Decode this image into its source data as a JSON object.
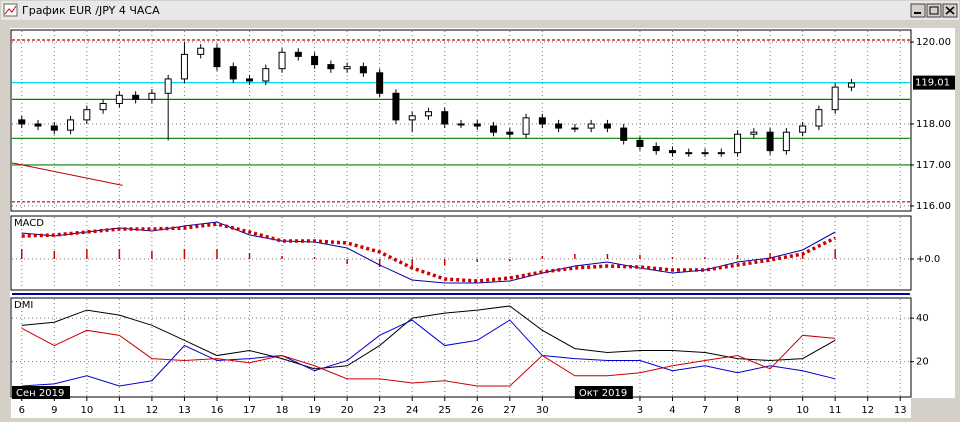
{
  "window": {
    "title": "График EUR /JPY  4 ЧАСА"
  },
  "chart_data": [
    {
      "type": "candlestick",
      "xlim": [
        -0.3,
        27.3
      ],
      "ylim": [
        115.9,
        120.27
      ],
      "yticks": [
        {
          "value": 116,
          "label": "116.00"
        },
        {
          "value": 117,
          "label": "117.00"
        },
        {
          "value": 118,
          "label": "118.00"
        },
        {
          "value": 120,
          "label": "120.00"
        }
      ],
      "grid": true,
      "up_color": "#ffffff",
      "down_color": "#000000",
      "last_price": 119.01,
      "x": [
        0,
        0.5,
        1,
        1.5,
        2,
        2.5,
        3,
        3.5,
        4,
        4.5,
        5,
        5.5,
        6,
        6.5,
        7,
        7.5,
        8,
        8.5,
        9,
        9.5,
        10,
        10.5,
        11,
        11.5,
        12,
        12.5,
        13,
        13.5,
        14,
        14.5,
        15,
        15.5,
        16,
        16.5,
        17,
        17.5,
        18,
        18.5,
        19,
        19.5,
        20,
        20.5,
        21,
        21.5,
        22,
        22.5,
        23,
        23.5,
        24,
        24.5,
        25,
        25.5
      ],
      "open": [
        118.1,
        118.0,
        117.95,
        117.85,
        118.1,
        118.35,
        118.5,
        118.7,
        118.6,
        118.75,
        119.1,
        119.7,
        119.85,
        119.4,
        119.1,
        119.05,
        119.35,
        119.75,
        119.65,
        119.45,
        119.35,
        119.4,
        119.25,
        118.75,
        118.1,
        118.2,
        118.3,
        118.0,
        118.0,
        117.95,
        117.8,
        117.75,
        118.15,
        118.0,
        117.9,
        117.9,
        118.0,
        117.9,
        117.6,
        117.45,
        117.35,
        117.3,
        117.3,
        117.3,
        117.3,
        117.75,
        117.8,
        117.35,
        117.8,
        117.95,
        118.35,
        118.9
      ],
      "high": [
        118.2,
        118.1,
        118.05,
        118.2,
        118.45,
        118.6,
        118.8,
        118.8,
        118.85,
        119.2,
        120.0,
        119.95,
        119.95,
        119.5,
        119.2,
        119.45,
        119.85,
        119.85,
        119.75,
        119.55,
        119.5,
        119.5,
        119.35,
        118.85,
        118.3,
        118.4,
        118.4,
        118.1,
        118.1,
        118.05,
        117.9,
        118.25,
        118.25,
        118.1,
        118.0,
        118.1,
        118.1,
        118.0,
        117.7,
        117.55,
        117.45,
        117.4,
        117.4,
        117.4,
        117.85,
        117.9,
        117.9,
        117.9,
        118.05,
        118.45,
        119.0,
        119.1
      ],
      "low": [
        117.9,
        117.85,
        117.75,
        117.75,
        118.0,
        118.25,
        118.4,
        118.5,
        118.5,
        117.6,
        119.0,
        119.6,
        119.3,
        119.0,
        118.95,
        118.95,
        119.25,
        119.55,
        119.35,
        119.25,
        119.25,
        119.15,
        118.65,
        118.0,
        117.8,
        118.1,
        117.9,
        117.9,
        117.85,
        117.7,
        117.65,
        117.65,
        117.9,
        117.8,
        117.8,
        117.8,
        117.8,
        117.5,
        117.35,
        117.25,
        117.2,
        117.2,
        117.2,
        117.2,
        117.2,
        117.65,
        117.25,
        117.25,
        117.7,
        117.85,
        118.25,
        118.8
      ],
      "close": [
        118.0,
        117.95,
        117.85,
        118.1,
        118.35,
        118.5,
        118.7,
        118.6,
        118.75,
        119.1,
        119.7,
        119.85,
        119.4,
        119.1,
        119.05,
        119.35,
        119.75,
        119.65,
        119.45,
        119.35,
        119.4,
        119.25,
        118.75,
        118.1,
        118.2,
        118.3,
        118.0,
        118.0,
        117.95,
        117.8,
        117.75,
        118.15,
        118.0,
        117.9,
        117.9,
        118.0,
        117.9,
        117.6,
        117.45,
        117.35,
        117.3,
        117.3,
        117.3,
        117.3,
        117.75,
        117.8,
        117.35,
        117.8,
        117.95,
        118.35,
        118.9,
        119.0
      ],
      "levels": [
        {
          "value": 120.05,
          "color": "#c00000",
          "dash": true
        },
        {
          "value": 119.01,
          "color": "#00d8e8",
          "dash": false
        },
        {
          "value": 118.6,
          "color": "#008000",
          "dash": false
        },
        {
          "value": 117.65,
          "color": "#008000",
          "dash": false
        },
        {
          "value": 117.0,
          "color": "#008000",
          "dash": false
        },
        {
          "value": 116.1,
          "color": "#c00000",
          "dash": true
        }
      ],
      "trendline": {
        "x": [
          -0.3,
          3.1
        ],
        "y": [
          117.05,
          116.5
        ],
        "color": "#c00000"
      }
    },
    {
      "type": "line",
      "title": "MACD",
      "xlim": [
        -0.3,
        27.3
      ],
      "ylim": [
        -0.3,
        0.42
      ],
      "yticks": [
        {
          "value": 0,
          "label": "+0.0"
        }
      ],
      "grid": true,
      "x": [
        0,
        1,
        2,
        3,
        4,
        5,
        6,
        7,
        8,
        9,
        10,
        11,
        12,
        13,
        14,
        15,
        16,
        17,
        18,
        19,
        20,
        21,
        22,
        23,
        24,
        25
      ],
      "series": [
        {
          "color": "#cc0000",
          "style": "bar",
          "values": [
            0.1,
            0.08,
            0.1,
            0.1,
            0.08,
            0.1,
            0.1,
            0.06,
            0.03,
            0.02,
            -0.05,
            -0.08,
            -0.1,
            -0.06,
            -0.03,
            -0.02,
            0.03,
            0.05,
            0.05,
            0.04,
            0.02,
            0.02,
            0.04,
            0.06,
            0.06,
            0.1
          ]
        },
        {
          "color": "#0000aa",
          "style": "line",
          "values": [
            0.26,
            0.23,
            0.27,
            0.31,
            0.28,
            0.33,
            0.37,
            0.24,
            0.18,
            0.17,
            0.11,
            -0.06,
            -0.21,
            -0.24,
            -0.24,
            -0.22,
            -0.14,
            -0.07,
            -0.03,
            -0.09,
            -0.14,
            -0.11,
            -0.03,
            0.01,
            0.09,
            0.27
          ]
        },
        {
          "color": "#cc0000",
          "style": "dots",
          "values": [
            0.23,
            0.24,
            0.27,
            0.3,
            0.3,
            0.31,
            0.35,
            0.27,
            0.18,
            0.18,
            0.16,
            0.07,
            -0.09,
            -0.2,
            -0.22,
            -0.19,
            -0.13,
            -0.09,
            -0.07,
            -0.08,
            -0.11,
            -0.11,
            -0.06,
            -0.01,
            0.05,
            0.21
          ]
        }
      ]
    },
    {
      "type": "line",
      "title": "DMI",
      "xlim": [
        -0.3,
        27.3
      ],
      "ylim": [
        4.2,
        48.8
      ],
      "yticks": [
        20,
        40
      ],
      "grid": true,
      "x": [
        0,
        1,
        2,
        3,
        4,
        5,
        6,
        7,
        8,
        9,
        10,
        11,
        12,
        13,
        14,
        15,
        16,
        17,
        18,
        19,
        20,
        21,
        22,
        23,
        24,
        25
      ],
      "series": [
        {
          "color": "#000000",
          "style": "line",
          "values": [
            36.7,
            38.1,
            43.7,
            41.4,
            36.7,
            29.8,
            22.8,
            25.1,
            21.4,
            16.7,
            18.1,
            27.4,
            40,
            42.3,
            43.7,
            45.6,
            34.4,
            26.0,
            24.2,
            25.1,
            25.1,
            24.2,
            21.4,
            20.5,
            21.4,
            29.8
          ]
        },
        {
          "color": "#0000cc",
          "style": "line",
          "values": [
            8.8,
            9.8,
            13.5,
            8.8,
            11.2,
            27.4,
            20.5,
            21.4,
            22.8,
            15.8,
            20.5,
            32.1,
            39.1,
            27.4,
            29.8,
            39.1,
            22.8,
            21.4,
            20.5,
            20.5,
            15.8,
            18.1,
            14.9,
            18.1,
            15.8,
            12.1
          ]
        },
        {
          "color": "#cc0000",
          "style": "line",
          "values": [
            35.3,
            27.4,
            34.4,
            32.1,
            21.4,
            20.5,
            21.4,
            19.5,
            22.8,
            18.1,
            12.1,
            12.1,
            10.2,
            11.2,
            8.8,
            8.8,
            22.8,
            13.5,
            13.5,
            14.9,
            18.1,
            20.5,
            22.8,
            16.7,
            32.1,
            30.7
          ]
        }
      ],
      "xticks": [
        {
          "value": 0,
          "label": "6"
        },
        {
          "value": 1,
          "label": "9"
        },
        {
          "value": 2,
          "label": "10"
        },
        {
          "value": 3,
          "label": "11"
        },
        {
          "value": 4,
          "label": "12"
        },
        {
          "value": 5,
          "label": "13"
        },
        {
          "value": 6,
          "label": "16"
        },
        {
          "value": 7,
          "label": "17"
        },
        {
          "value": 8,
          "label": "18"
        },
        {
          "value": 9,
          "label": "19"
        },
        {
          "value": 10,
          "label": "20"
        },
        {
          "value": 11,
          "label": "23"
        },
        {
          "value": 12,
          "label": "24"
        },
        {
          "value": 13,
          "label": "25"
        },
        {
          "value": 14,
          "label": "26"
        },
        {
          "value": 15,
          "label": "27"
        },
        {
          "value": 16,
          "label": "30"
        },
        {
          "value": 19,
          "label": "3"
        },
        {
          "value": 20,
          "label": "4"
        },
        {
          "value": 21,
          "label": "7"
        },
        {
          "value": 22,
          "label": "8"
        },
        {
          "value": 23,
          "label": "9"
        },
        {
          "value": 24,
          "label": "10"
        },
        {
          "value": 25,
          "label": "11"
        },
        {
          "value": 26,
          "label": "12"
        },
        {
          "value": 27,
          "label": "13"
        }
      ],
      "period_labels": [
        {
          "value": -0.3,
          "label": "Сен 2019"
        },
        {
          "value": 17,
          "label": "Окт 2019"
        }
      ]
    }
  ]
}
